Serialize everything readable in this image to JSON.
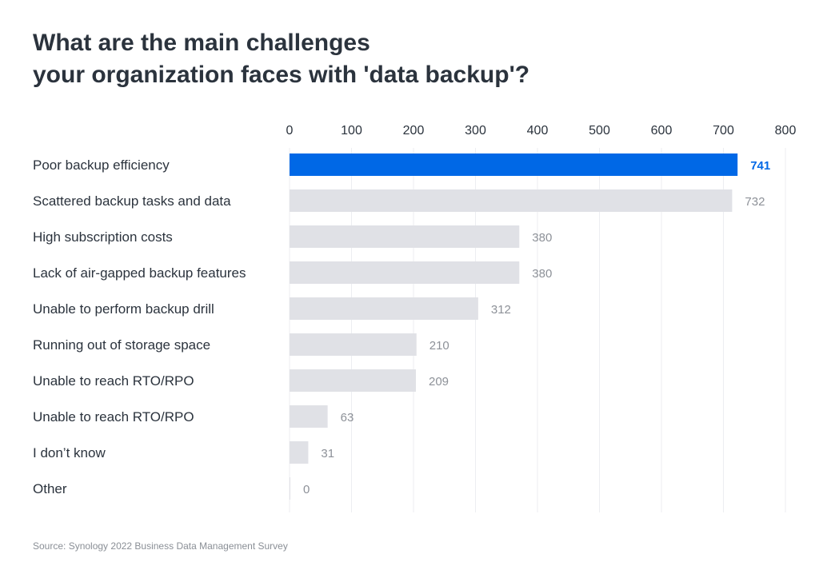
{
  "chart_data": {
    "type": "bar",
    "orientation": "horizontal",
    "title": [
      "What are the main challenges",
      "your organization faces with 'data backup'?"
    ],
    "categories": [
      "Poor backup efficiency",
      "Scattered backup tasks and data",
      "High subscription costs",
      "Lack of air-gapped backup features",
      "Unable to perform backup drill",
      "Running out of storage space",
      "Unable to reach RTO/RPO",
      "Unable to reach RTO/RPO",
      "I don’t know",
      "Other"
    ],
    "values": [
      741,
      732,
      380,
      380,
      312,
      210,
      209,
      63,
      31,
      0
    ],
    "highlight_index": 0,
    "xlim": [
      0,
      800
    ],
    "xticks": [
      0,
      100,
      200,
      300,
      400,
      500,
      600,
      700,
      800
    ],
    "grid": true,
    "xlabel": "",
    "ylabel": "",
    "colors": {
      "highlight": "#0068e6",
      "bar": "#e0e1e6",
      "label": "#8d9198",
      "highlight_label": "#0068e6",
      "grid": "#eceef1",
      "text": "#2b333d"
    }
  },
  "source": "Source: Synology 2022 Business Data Management Survey"
}
